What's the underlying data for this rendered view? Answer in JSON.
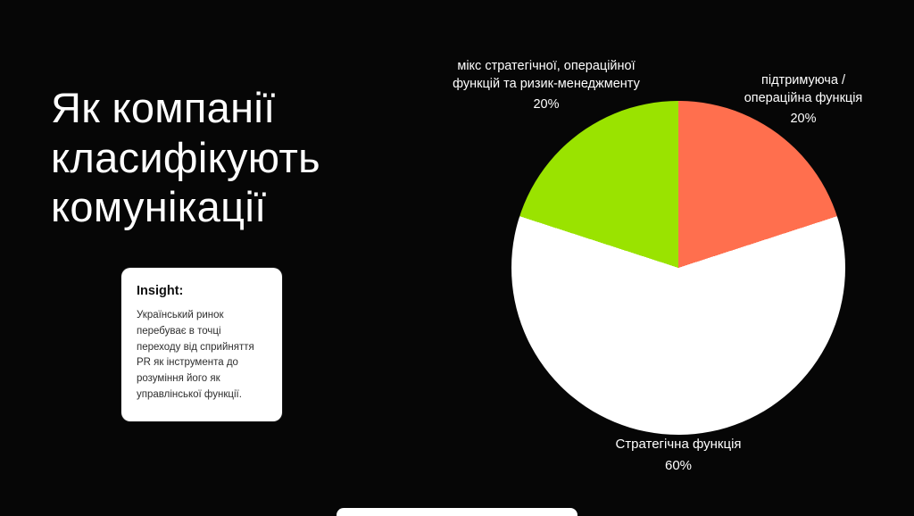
{
  "slide": {
    "title": "Як компанії класифікують комунікації",
    "insight": {
      "heading": "Insight:",
      "body": "Український ринок перебуває в точці переходу від сприйняття PR як інструмента до розуміння його як управлінської функції."
    }
  },
  "chart_data": {
    "type": "pie",
    "title": "Як компанії класифікують комунікації",
    "direction": "clockwise",
    "start_angle_deg": 0,
    "legend_position": "outside-labels",
    "slices": [
      {
        "label": "підтримуюча / операційна функція",
        "value": 20,
        "pct_label": "20%",
        "color": "#ff6f4e"
      },
      {
        "label": "Стратегічна функція",
        "value": 60,
        "pct_label": "60%",
        "color": "#ffffff"
      },
      {
        "label": "мікс стратегічної, операційної функцій та ризик-менеджменту",
        "value": 20,
        "pct_label": "20%",
        "color": "#9ae300"
      }
    ]
  }
}
